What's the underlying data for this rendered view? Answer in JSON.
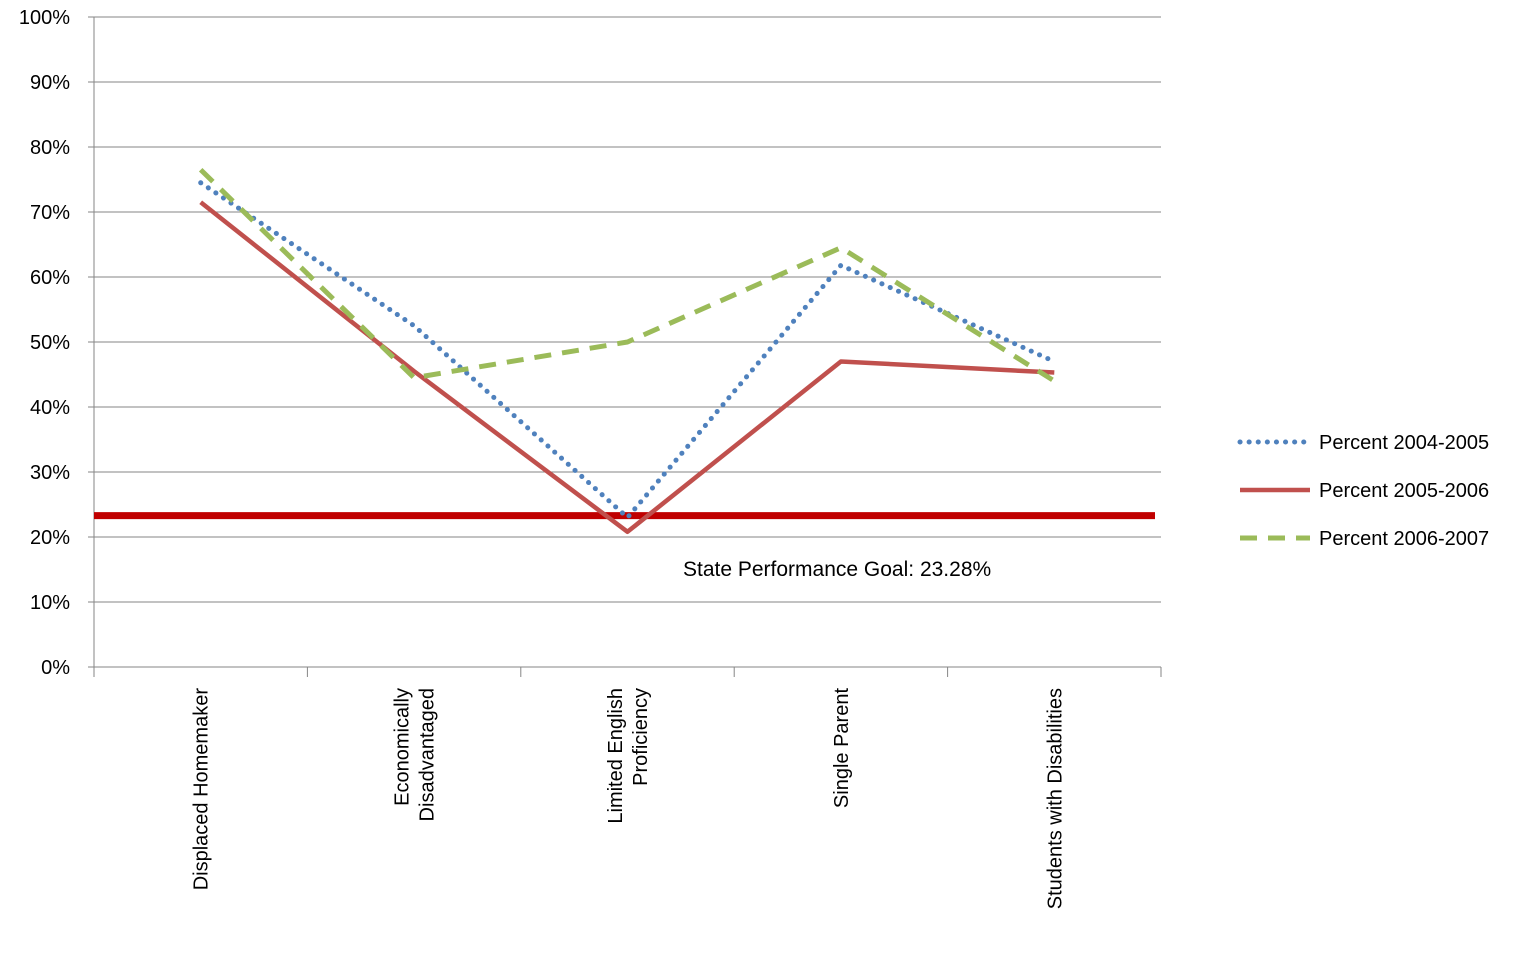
{
  "chart_data": {
    "type": "line",
    "title": "",
    "xlabel": "",
    "ylabel": "",
    "ylim": [
      0,
      100
    ],
    "y_ticks": [
      "0%",
      "10%",
      "20%",
      "30%",
      "40%",
      "50%",
      "60%",
      "70%",
      "80%",
      "90%",
      "100%"
    ],
    "y_unit": "%",
    "grid": true,
    "legend_position": "right",
    "categories": [
      [
        "Displaced Homemaker"
      ],
      [
        "Economically",
        "Disadvantaged"
      ],
      [
        "Limited English",
        "Proficiency"
      ],
      [
        "Single Parent"
      ],
      [
        "Students with Disabilities"
      ]
    ],
    "series": [
      {
        "name": "Percent 2004-2005",
        "values": [
          74.5,
          52.5,
          23.0,
          61.8,
          47.0
        ],
        "color": "#4F81BD",
        "style": "dotted"
      },
      {
        "name": "Percent 2005-2006",
        "values": [
          71.5,
          45.5,
          20.8,
          47.0,
          45.3
        ],
        "color": "#C0504D",
        "style": "solid"
      },
      {
        "name": "Percent 2006-2007",
        "values": [
          76.5,
          44.5,
          50.0,
          64.5,
          44.0
        ],
        "color": "#9BBB59",
        "style": "dashed"
      }
    ],
    "reference_line": {
      "value": 23.28,
      "label": "State Performance Goal: 23.28%",
      "color": "#C00000"
    }
  }
}
